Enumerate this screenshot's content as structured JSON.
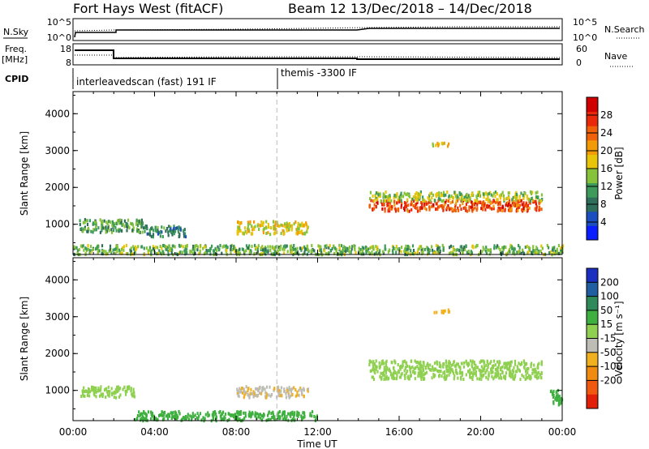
{
  "header": {
    "site": "Fort Hays West (fitACF)",
    "beam": "Beam 12",
    "date_range": "13/Dec/2018 – 14/Dec/2018"
  },
  "strip_labels": {
    "nsky": "N.Sky",
    "freq_top": "Freq.",
    "freq_unit": "[MHz]",
    "cpid": "CPID",
    "nsearch": "N.Search",
    "nave": "Nave"
  },
  "noise_axis": {
    "top": "10^5",
    "bottom": "10^0"
  },
  "freq_axis": {
    "left_ticks": [
      "18",
      "8"
    ],
    "right_ticks": [
      "60",
      "0"
    ]
  },
  "cpid_segments": [
    {
      "label": "interleavedscan (fast) 191 IF",
      "start_hour": 0
    },
    {
      "label": "themis -3300 IF",
      "start_hour": 10
    }
  ],
  "time_axis": {
    "label": "Time UT",
    "ticks": [
      "00:00",
      "04:00",
      "08:00",
      "12:00",
      "16:00",
      "20:00",
      "00:00"
    ],
    "range_hours": [
      0,
      24
    ]
  },
  "range_axis": {
    "label": "Slant Range [km]",
    "ticks": [
      "1000",
      "2000",
      "3000",
      "4000"
    ],
    "range_km": [
      180,
      4600
    ]
  },
  "power_bar": {
    "label": "Power [dB]",
    "ticks": [
      "4",
      "8",
      "12",
      "16",
      "20",
      "24",
      "28"
    ],
    "colors": [
      "#0a1eff",
      "#1b4fbf",
      "#2f6e5a",
      "#3d9a5a",
      "#86c23a",
      "#e8c40a",
      "#f39a08",
      "#f0620a",
      "#e82a0a",
      "#d00000"
    ]
  },
  "velocity_bar": {
    "label": "Velocity [m s⁻¹]",
    "ticks": [
      "200",
      "100",
      "50",
      "15",
      "-15",
      "-50",
      "-100",
      "-200"
    ],
    "colors": [
      "#1a2fbf",
      "#1f5ea0",
      "#2f8a5a",
      "#3fb040",
      "#8fd050",
      "#bdbdb6",
      "#f0b020",
      "#f08a10",
      "#f05a10",
      "#e02008"
    ]
  },
  "chart_data": [
    {
      "type": "heatmap",
      "title": "Power",
      "xlabel": "Time UT",
      "ylabel": "Slant Range [km]",
      "xlim": [
        0,
        24
      ],
      "ylim": [
        180,
        4600
      ],
      "colorbar": "Power [dB]",
      "features": [
        {
          "t_start": 0.3,
          "t_end": 3.5,
          "range_center": 950,
          "range_width": 350,
          "power_db": 11
        },
        {
          "t_start": 3.5,
          "t_end": 5.5,
          "range_center": 800,
          "range_width": 300,
          "power_db": 9
        },
        {
          "t_start": 8.0,
          "t_end": 11.5,
          "range_center": 900,
          "range_width": 350,
          "power_db": 16
        },
        {
          "t_start": 14.5,
          "t_end": 23.0,
          "range_center": 1500,
          "range_width": 300,
          "power_db": 24
        },
        {
          "t_start": 14.5,
          "t_end": 23.0,
          "range_center": 1750,
          "range_width": 250,
          "power_db": 14
        },
        {
          "t_start": 17.6,
          "t_end": 18.5,
          "range_center": 3150,
          "range_width": 100,
          "power_db": 16
        },
        {
          "t_start": 0,
          "t_end": 24,
          "range_center": 300,
          "range_width": 250,
          "power_db": 12
        }
      ]
    },
    {
      "type": "heatmap",
      "title": "Velocity",
      "xlabel": "Time UT",
      "ylabel": "Slant Range [km]",
      "xlim": [
        0,
        24
      ],
      "ylim": [
        180,
        4600
      ],
      "colorbar": "Velocity [m s-1]",
      "features": [
        {
          "t_start": 0.3,
          "t_end": 3.0,
          "range_center": 950,
          "range_width": 300,
          "velocity": 0
        },
        {
          "t_start": 8.0,
          "t_end": 11.5,
          "range_center": 950,
          "range_width": 300,
          "velocity": -45
        },
        {
          "t_start": 14.5,
          "t_end": 23.0,
          "range_center": 1550,
          "range_width": 500,
          "velocity": 0
        },
        {
          "t_start": 17.6,
          "t_end": 18.5,
          "range_center": 3150,
          "range_width": 100,
          "velocity": -80
        },
        {
          "t_start": 3.0,
          "t_end": 12.0,
          "range_center": 300,
          "range_width": 250,
          "velocity": 30
        },
        {
          "t_start": 23.4,
          "t_end": 24,
          "range_center": 800,
          "range_width": 400,
          "velocity": 30
        }
      ]
    }
  ]
}
